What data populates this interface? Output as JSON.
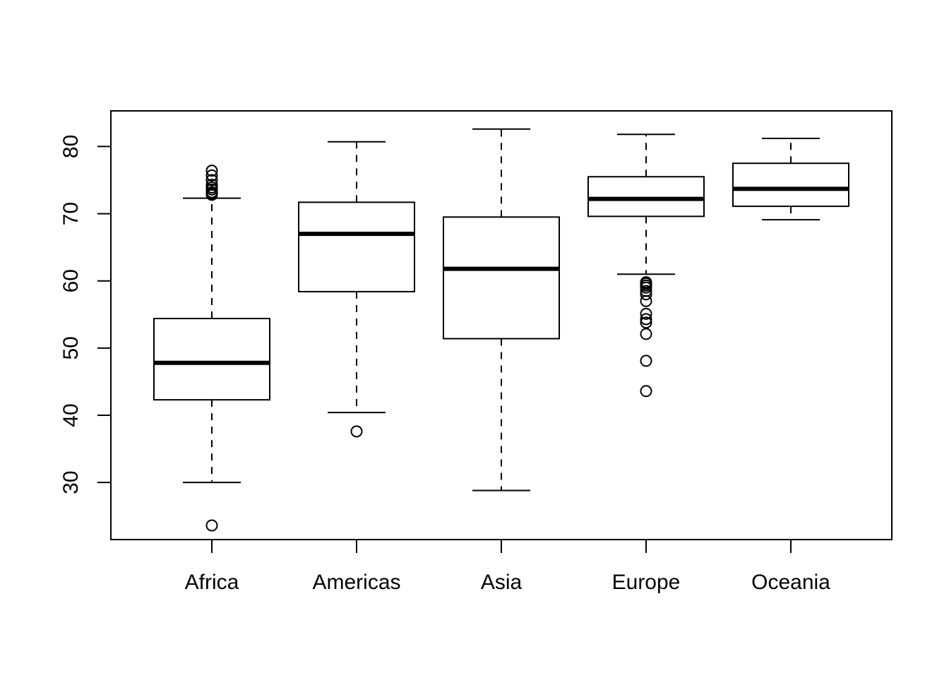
{
  "chart_data": {
    "type": "box",
    "categories": [
      "Africa",
      "Americas",
      "Asia",
      "Europe",
      "Oceania"
    ],
    "boxes": [
      {
        "category": "Africa",
        "whisker_low": 30.0,
        "q1": 42.3,
        "median": 47.8,
        "q3": 54.4,
        "whisker_high": 72.3,
        "outliers": [
          23.6,
          72.8,
          73.0,
          73.2,
          73.6,
          73.9,
          74.3,
          75.0,
          75.7,
          76.4
        ]
      },
      {
        "category": "Americas",
        "whisker_low": 40.4,
        "q1": 58.4,
        "median": 67.0,
        "q3": 71.7,
        "whisker_high": 80.7,
        "outliers": [
          37.6
        ]
      },
      {
        "category": "Asia",
        "whisker_low": 28.8,
        "q1": 51.4,
        "median": 61.8,
        "q3": 69.5,
        "whisker_high": 82.6,
        "outliers": []
      },
      {
        "category": "Europe",
        "whisker_low": 61.0,
        "q1": 69.6,
        "median": 72.2,
        "q3": 75.5,
        "whisker_high": 81.8,
        "outliers": [
          43.6,
          48.1,
          52.1,
          53.8,
          54.3,
          55.1,
          57.0,
          58.0,
          58.5,
          59.0,
          59.3,
          59.6,
          59.8
        ]
      },
      {
        "category": "Oceania",
        "whisker_low": 69.1,
        "q1": 71.1,
        "median": 73.7,
        "q3": 77.5,
        "whisker_high": 81.2,
        "outliers": []
      }
    ],
    "yticks": [
      30,
      40,
      50,
      60,
      70,
      80
    ],
    "ylim": [
      21.5,
      85.3
    ],
    "title": "",
    "xlabel": "",
    "ylabel": "",
    "grid": false,
    "colors": {
      "stroke": "#000000",
      "fill": "#ffffff"
    }
  }
}
